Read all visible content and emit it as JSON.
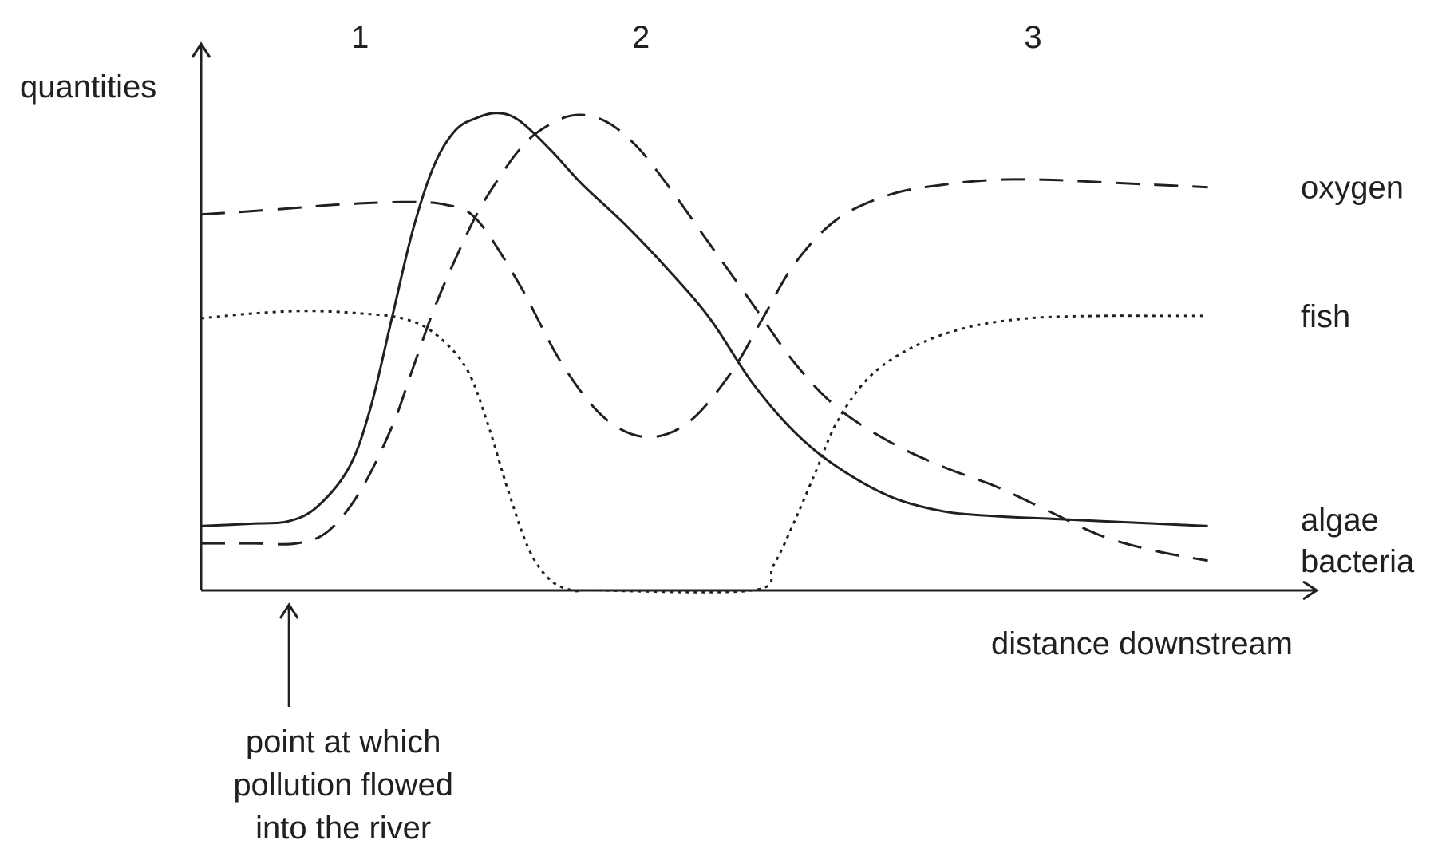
{
  "chart_data": {
    "type": "line",
    "ylabel": "quantities",
    "xlabel": "distance downstream",
    "xlim": [
      0,
      100
    ],
    "ylim": [
      0,
      100
    ],
    "grid": false,
    "legend": "labels at right end of each curve",
    "zones": [
      {
        "label": "1",
        "x": 15
      },
      {
        "label": "2",
        "x": 41.5
      },
      {
        "label": "3",
        "x": 78.5
      }
    ],
    "annotations": [
      {
        "text_lines": [
          "point at which",
          "pollution flowed",
          "into the river"
        ],
        "x": 8.3
      }
    ],
    "series": [
      {
        "name": "oxygen",
        "style": "dashed",
        "x": [
          0,
          7,
          13,
          19,
          23,
          26,
          30,
          34,
          38,
          42,
          46,
          50,
          53,
          56,
          60,
          65,
          70,
          75,
          80,
          85,
          90,
          95
        ],
        "y": [
          76,
          77,
          78,
          78.5,
          78,
          75,
          62,
          46,
          35,
          31,
          34,
          44,
          55,
          66,
          75,
          80,
          82,
          83,
          83,
          82.5,
          82,
          81.5
        ]
      },
      {
        "name": "fish",
        "style": "dotted",
        "x": [
          0,
          5,
          10,
          15,
          19,
          22,
          25,
          27,
          29,
          31,
          33,
          35,
          36,
          37,
          52,
          54,
          56,
          58,
          60,
          63,
          67,
          72,
          78,
          85,
          90,
          95
        ],
        "y": [
          55,
          56,
          56.5,
          56,
          55,
          52,
          45,
          34,
          20,
          8,
          2,
          0,
          0,
          0,
          0,
          5,
          14,
          24,
          34,
          43,
          49,
          53,
          55,
          55.5,
          55.5,
          55.5
        ]
      },
      {
        "name": "algae",
        "style": "solid",
        "x": [
          0,
          5,
          8.3,
          11,
          14,
          16,
          18,
          20,
          22,
          24,
          26,
          28,
          30,
          33,
          36,
          40,
          44,
          48,
          52,
          56,
          60,
          65,
          70,
          75,
          80,
          85,
          90,
          95
        ],
        "y": [
          13,
          13.5,
          14,
          17,
          25,
          37,
          55,
          73,
          86,
          93,
          95.5,
          96.5,
          95,
          89,
          82,
          74,
          65,
          55,
          42,
          32,
          25,
          19,
          16,
          15,
          14.5,
          14,
          13.5,
          13
        ]
      },
      {
        "name": "bacteria",
        "style": "dashed",
        "x": [
          0,
          5,
          9,
          12,
          15,
          18,
          20,
          22,
          24,
          26,
          28,
          30,
          32,
          35,
          38,
          41,
          44,
          48,
          52,
          56,
          60,
          65,
          70,
          75,
          80,
          85,
          90,
          95
        ],
        "y": [
          9.5,
          9.5,
          9.5,
          12,
          20,
          33,
          45,
          57,
          67,
          76,
          83,
          89,
          93,
          96,
          95,
          90,
          82,
          70,
          58,
          46,
          37,
          30,
          25,
          21,
          16,
          11,
          8,
          6
        ]
      }
    ]
  }
}
